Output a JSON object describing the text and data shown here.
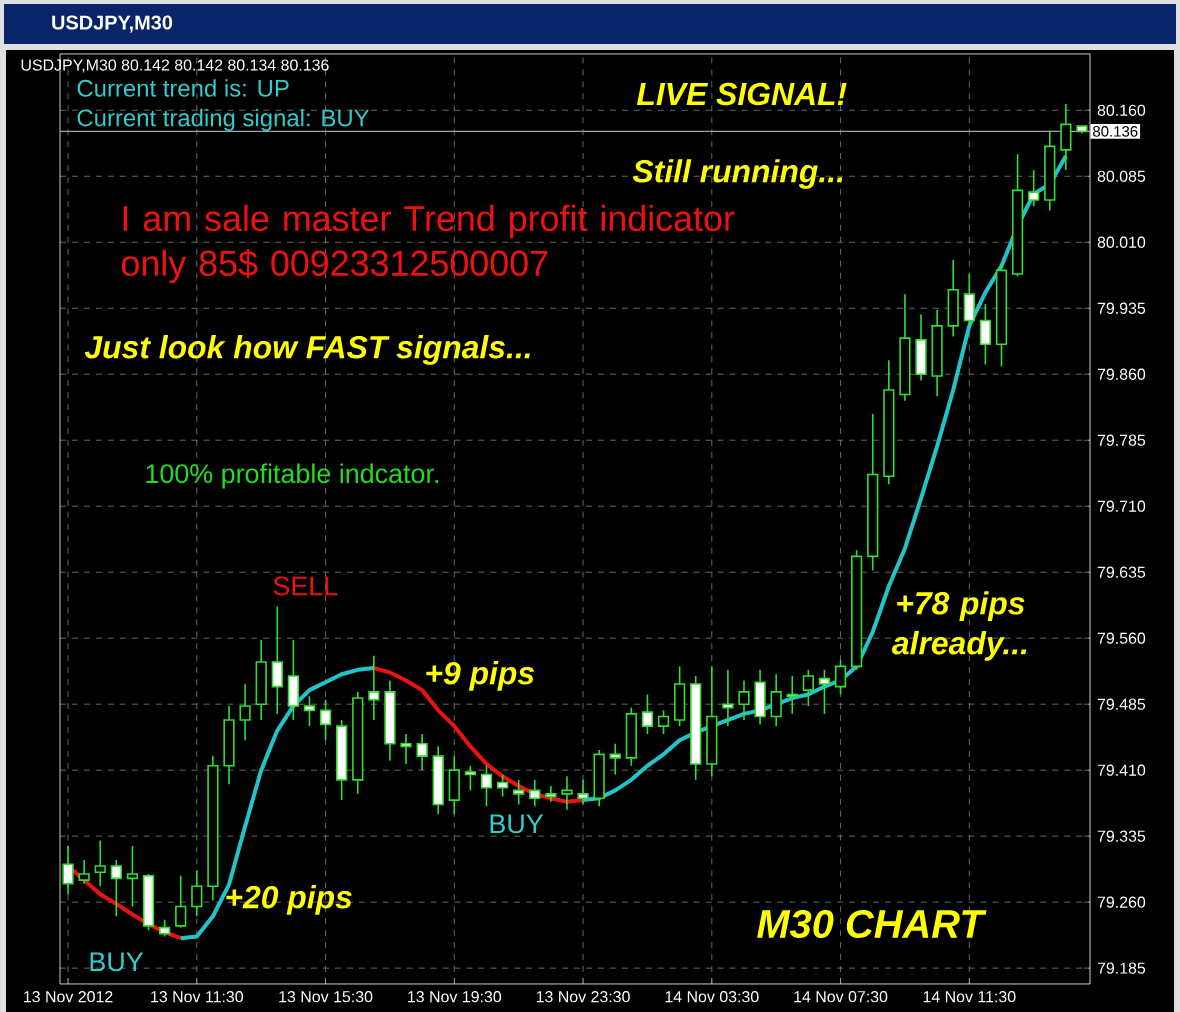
{
  "chart_data": {
    "type": "candlestick",
    "title": "USDJPY,M30",
    "categories": [
      "13 Nov 2012",
      null,
      null,
      null,
      null,
      null,
      null,
      null,
      "13 Nov 11:30",
      null,
      null,
      null,
      null,
      null,
      null,
      null,
      "13 Nov 15:30",
      null,
      null,
      null,
      null,
      null,
      null,
      null,
      "13 Nov 19:30",
      null,
      null,
      null,
      null,
      null,
      null,
      null,
      "13 Nov 23:30",
      null,
      null,
      null,
      null,
      null,
      null,
      null,
      "14 Nov 03:30",
      null,
      null,
      null,
      null,
      null,
      null,
      null,
      "14 Nov 07:30",
      null,
      null,
      null,
      null,
      null,
      null,
      null,
      "14 Nov 11:30",
      null,
      null,
      null,
      null,
      null,
      null,
      null
    ],
    "ohlc": [
      [
        79.303,
        79.324,
        79.269,
        79.281
      ],
      [
        79.285,
        79.308,
        79.281,
        79.292
      ],
      [
        79.294,
        79.33,
        79.278,
        79.301
      ],
      [
        79.301,
        79.308,
        79.244,
        79.287
      ],
      [
        79.287,
        79.324,
        79.255,
        79.292
      ],
      [
        79.29,
        79.292,
        79.228,
        79.233
      ],
      [
        79.231,
        79.24,
        79.221,
        79.224
      ],
      [
        79.233,
        79.29,
        79.231,
        79.255
      ],
      [
        79.255,
        79.296,
        79.244,
        79.278
      ],
      [
        79.278,
        79.426,
        79.262,
        79.415
      ],
      [
        79.415,
        79.483,
        79.394,
        79.467
      ],
      [
        79.467,
        79.508,
        79.444,
        79.483
      ],
      [
        79.485,
        79.558,
        79.467,
        79.533
      ],
      [
        79.533,
        79.596,
        79.474,
        79.505
      ],
      [
        79.517,
        79.558,
        79.467,
        79.483
      ],
      [
        79.483,
        79.494,
        79.46,
        79.478
      ],
      [
        79.478,
        79.49,
        79.444,
        79.462
      ],
      [
        79.46,
        79.467,
        79.376,
        79.399
      ],
      [
        79.399,
        79.499,
        79.383,
        79.492
      ],
      [
        79.499,
        79.54,
        79.467,
        79.49
      ],
      [
        79.499,
        79.512,
        79.421,
        79.44
      ],
      [
        79.44,
        79.451,
        79.417,
        79.437
      ],
      [
        79.44,
        79.451,
        79.41,
        79.426
      ],
      [
        79.426,
        79.437,
        79.36,
        79.371
      ],
      [
        79.376,
        79.426,
        79.36,
        79.41
      ],
      [
        79.408,
        79.415,
        79.387,
        79.405
      ],
      [
        79.405,
        79.415,
        79.369,
        79.39
      ],
      [
        79.396,
        79.405,
        79.38,
        79.39
      ],
      [
        79.387,
        79.399,
        79.371,
        79.383
      ],
      [
        79.387,
        79.399,
        79.369,
        79.378
      ],
      [
        79.383,
        79.392,
        79.374,
        79.38
      ],
      [
        79.383,
        79.403,
        79.365,
        79.387
      ],
      [
        79.383,
        79.399,
        79.371,
        79.378
      ],
      [
        79.378,
        79.433,
        79.369,
        79.428
      ],
      [
        79.428,
        79.44,
        79.405,
        79.424
      ],
      [
        79.424,
        79.481,
        79.415,
        79.474
      ],
      [
        79.476,
        79.496,
        79.451,
        79.46
      ],
      [
        79.46,
        79.478,
        79.451,
        79.471
      ],
      [
        79.467,
        79.528,
        79.46,
        79.508
      ],
      [
        79.508,
        79.517,
        79.399,
        79.417
      ],
      [
        79.417,
        79.528,
        79.403,
        79.471
      ],
      [
        79.485,
        79.524,
        79.46,
        79.481
      ],
      [
        79.485,
        79.512,
        79.467,
        79.499
      ],
      [
        79.51,
        79.524,
        79.462,
        79.471
      ],
      [
        79.471,
        79.519,
        79.46,
        79.499
      ],
      [
        79.496,
        79.517,
        79.474,
        79.494
      ],
      [
        79.501,
        79.524,
        79.483,
        79.517
      ],
      [
        79.514,
        79.524,
        79.474,
        79.508
      ],
      [
        79.505,
        79.535,
        79.496,
        79.528
      ],
      [
        79.528,
        79.66,
        79.524,
        79.653
      ],
      [
        79.653,
        79.815,
        79.637,
        79.746
      ],
      [
        79.744,
        79.876,
        79.735,
        79.842
      ],
      [
        79.837,
        79.951,
        79.83,
        79.901
      ],
      [
        79.899,
        79.928,
        79.853,
        79.86
      ],
      [
        79.858,
        79.933,
        79.835,
        79.915
      ],
      [
        79.915,
        79.99,
        79.903,
        79.956
      ],
      [
        79.951,
        79.974,
        79.915,
        79.921
      ],
      [
        79.921,
        79.94,
        79.871,
        79.894
      ],
      [
        79.894,
        79.985,
        79.869,
        79.978
      ],
      [
        79.974,
        80.11,
        79.971,
        80.069
      ],
      [
        80.067,
        80.092,
        80.051,
        80.058
      ],
      [
        80.058,
        80.137,
        80.046,
        80.119
      ],
      [
        80.115,
        80.167,
        80.092,
        80.144
      ],
      [
        80.142,
        80.142,
        80.134,
        80.136
      ]
    ],
    "series": [
      {
        "type": "line",
        "color": "#ee1111",
        "values": [
          79.301,
          79.285,
          79.269,
          79.258,
          79.246,
          79.235,
          79.226,
          79.219,
          null,
          null,
          null,
          null,
          null,
          null,
          null,
          null,
          null,
          null,
          null,
          79.526,
          79.521,
          79.512,
          79.501,
          79.478,
          79.46,
          79.437,
          79.417,
          79.403,
          79.392,
          79.383,
          79.378,
          79.374,
          79.376,
          null,
          null,
          null,
          null,
          null,
          null,
          null,
          null,
          null,
          null,
          null,
          null,
          null,
          null,
          null,
          null,
          null,
          null,
          null,
          null,
          null,
          null,
          null,
          null,
          null,
          null,
          null,
          null,
          null,
          null,
          null
        ]
      },
      {
        "type": "line",
        "color": "#22c4cc",
        "values": [
          null,
          null,
          null,
          null,
          null,
          null,
          null,
          79.219,
          79.221,
          79.244,
          79.28,
          79.346,
          79.41,
          79.455,
          79.483,
          79.501,
          79.51,
          79.519,
          79.524,
          79.526,
          null,
          null,
          null,
          null,
          null,
          null,
          null,
          null,
          null,
          null,
          null,
          null,
          79.376,
          79.378,
          79.387,
          79.399,
          79.415,
          79.428,
          79.444,
          79.453,
          79.46,
          79.467,
          79.474,
          79.478,
          79.485,
          79.492,
          79.496,
          79.505,
          79.512,
          79.528,
          79.567,
          79.619,
          79.662,
          79.719,
          79.778,
          79.842,
          79.915,
          79.953,
          79.983,
          80.028,
          80.065,
          80.076,
          80.108,
          null
        ]
      }
    ],
    "ylim": [
      79.167,
      80.224
    ],
    "yticks": [
      {
        "value": 79.185,
        "label": "79.185"
      },
      {
        "value": 79.26,
        "label": "79.260"
      },
      {
        "value": 79.335,
        "label": "79.335"
      },
      {
        "value": 79.41,
        "label": "79.410"
      },
      {
        "value": 79.485,
        "label": "79.485"
      },
      {
        "value": 79.56,
        "label": "79.560"
      },
      {
        "value": 79.635,
        "label": "79.635"
      },
      {
        "value": 79.71,
        "label": "79.710"
      },
      {
        "value": 79.785,
        "label": "79.785"
      },
      {
        "value": 79.86,
        "label": "79.860"
      },
      {
        "value": 79.935,
        "label": "79.935"
      },
      {
        "value": 80.01,
        "label": "80.010"
      },
      {
        "value": 80.085,
        "label": "80.085"
      },
      {
        "value": 80.16,
        "label": "80.160"
      }
    ],
    "ref_lines": [
      {
        "axis": "y",
        "value": 80.136,
        "label": "80.136",
        "color": "#a0a0a0"
      }
    ],
    "grid": true,
    "annotations": [
      "Current trend is: UP",
      "Current trading signal: BUY",
      "I am sale master Trend profit indicator only 85$ 00923312500007",
      "Just look how FAST signals...",
      "100% profitable indcator.",
      "LIVE SIGNAL!",
      "Still running...",
      "SELL",
      "+9 pips",
      "BUY",
      "+20 pips",
      "BUY",
      "+78 pips already...",
      "M30 CHART",
      "USDJPY,M30 80.142 80.142 80.134 80.136"
    ]
  }
}
